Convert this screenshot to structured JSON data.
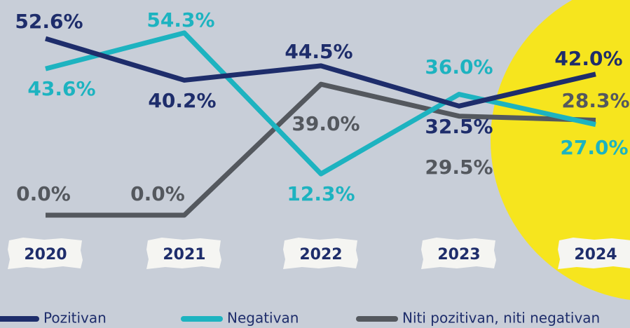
{
  "chart_data": {
    "type": "line",
    "categories": [
      "2020",
      "2021",
      "2022",
      "2023",
      "2024"
    ],
    "series": [
      {
        "name": "Pozitivan",
        "color": "#1e2d6b",
        "values": [
          52.6,
          40.2,
          44.5,
          32.5,
          42.0
        ],
        "value_labels": [
          "52.6%",
          "40.2%",
          "44.5%",
          "32.5%",
          "42.0%"
        ]
      },
      {
        "name": "Negativan",
        "color": "#1db3c0",
        "values": [
          43.6,
          54.3,
          12.3,
          36.0,
          27.0
        ],
        "value_labels": [
          "43.6%",
          "54.3%",
          "12.3%",
          "36.0%",
          "27.0%"
        ]
      },
      {
        "name": "Niti pozitivan, niti negativan",
        "color": "#54585e",
        "values": [
          0.0,
          0.0,
          39.0,
          29.5,
          28.3
        ],
        "value_labels": [
          "0.0%",
          "0.0%",
          "39.0%",
          "29.5%",
          "28.3%"
        ]
      }
    ]
  }
}
